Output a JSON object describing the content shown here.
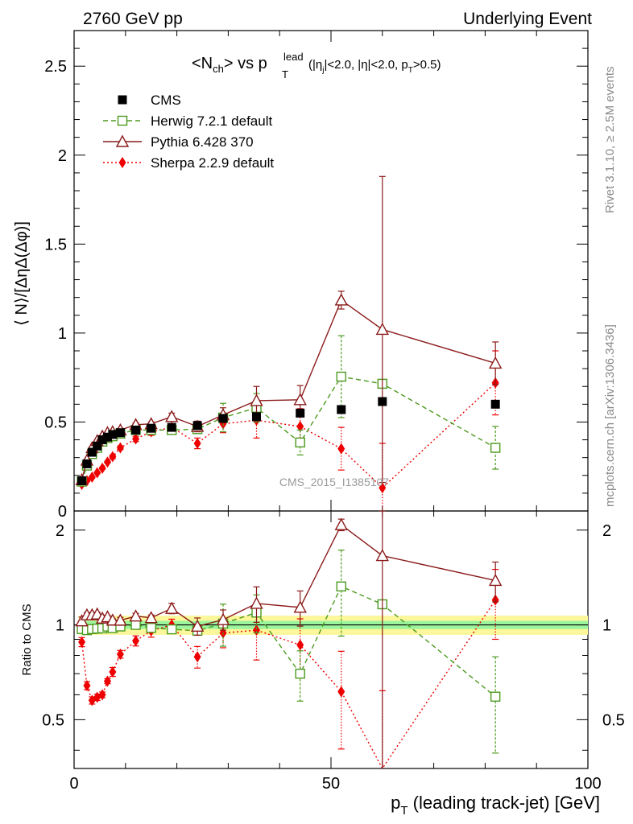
{
  "header": {
    "left": "2760 GeV pp",
    "right": "Underlying Event"
  },
  "side_labels": {
    "rivet": "Rivet 3.1.10, ≥ 2.5M events",
    "mcplots": "mcplots.cern.ch [arXiv:1306.3436]"
  },
  "watermark": "CMS_2015_I1385107",
  "chart_data": {
    "type": "scatter",
    "title": {
      "nch": "<N",
      "nch_sub": "ch",
      "mid": "> vs p",
      "sup": "lead",
      "sub_T": "T",
      "cuts_a": "(|η",
      "cuts_sub_j": "j",
      "cuts_b": "|<2.0, |η|<2.0, p",
      "cuts_sub_T": "T",
      "cuts_c": ">0.5)"
    },
    "xlabel": {
      "p": "p",
      "sub": "T",
      "rest": " (leading track-jet) [GeV]"
    },
    "ylabel_main": "⟨ N⟩/[ΔηΔ(Δφ)]",
    "ylabel_ratio": "Ratio to CMS",
    "xlim": [
      0,
      100
    ],
    "ylim_main": [
      0,
      2.7
    ],
    "ylim_ratio": [
      0.35,
      2.3
    ],
    "x_ticks": [
      "0",
      "50",
      "100"
    ],
    "y_ticks_main": [
      "0",
      "0.5",
      "1",
      "1.5",
      "2",
      "2.5"
    ],
    "y_ticks_ratio": [
      "0.5",
      "1",
      "2"
    ],
    "x": [
      1.5,
      2.5,
      3.5,
      4.5,
      5.5,
      6.5,
      7.5,
      9,
      12,
      15,
      19,
      24,
      29,
      35.5,
      44,
      52,
      60,
      82
    ],
    "series": [
      {
        "name": "CMS",
        "style": "square-filled",
        "color": "#000000",
        "values": [
          0.17,
          0.265,
          0.33,
          0.365,
          0.4,
          0.415,
          0.43,
          0.44,
          0.455,
          0.465,
          0.47,
          0.48,
          0.52,
          0.53,
          0.55,
          0.57,
          0.615,
          0.6
        ],
        "band_inner": 0.03,
        "band_outer": 0.07
      },
      {
        "name": "Herwig 7.2.1 default",
        "style": "square-open-dashed",
        "color": "#4d9a1f",
        "values": [
          0.165,
          0.255,
          0.32,
          0.355,
          0.39,
          0.41,
          0.42,
          0.435,
          0.455,
          0.455,
          0.455,
          0.46,
          0.525,
          0.58,
          0.385,
          0.755,
          0.715,
          0.355
        ],
        "errors": [
          0.005,
          0.005,
          0.005,
          0.005,
          0.005,
          0.005,
          0.005,
          0.01,
          0.01,
          0.01,
          0.01,
          0.015,
          0.08,
          0.08,
          0.07,
          0.23,
          0.0,
          0.12
        ]
      },
      {
        "name": "Pythia 6.428 370",
        "style": "triangle-open-solid",
        "color": "#8b1a1a",
        "values": [
          0.175,
          0.285,
          0.355,
          0.395,
          0.42,
          0.44,
          0.445,
          0.455,
          0.485,
          0.49,
          0.53,
          0.475,
          0.54,
          0.62,
          0.625,
          1.185,
          1.02,
          0.83
        ],
        "errors": [
          0.005,
          0.005,
          0.005,
          0.005,
          0.005,
          0.005,
          0.005,
          0.01,
          0.01,
          0.01,
          0.02,
          0.03,
          0.04,
          0.08,
          0.08,
          0.05,
          0.86,
          0.12
        ]
      },
      {
        "name": "Sherpa 2.2.9 default",
        "style": "diamond-filled-dotted",
        "color": "#ee0000",
        "values": [
          0.15,
          0.17,
          0.19,
          0.215,
          0.24,
          0.275,
          0.305,
          0.355,
          0.405,
          0.445,
          0.47,
          0.38,
          0.49,
          0.51,
          0.475,
          0.35,
          0.13,
          0.72
        ],
        "errors": [
          0.005,
          0.005,
          0.005,
          0.005,
          0.005,
          0.005,
          0.01,
          0.01,
          0.015,
          0.02,
          0.02,
          0.03,
          0.05,
          0.1,
          0.1,
          0.12,
          0.25,
          0.18
        ]
      }
    ]
  }
}
